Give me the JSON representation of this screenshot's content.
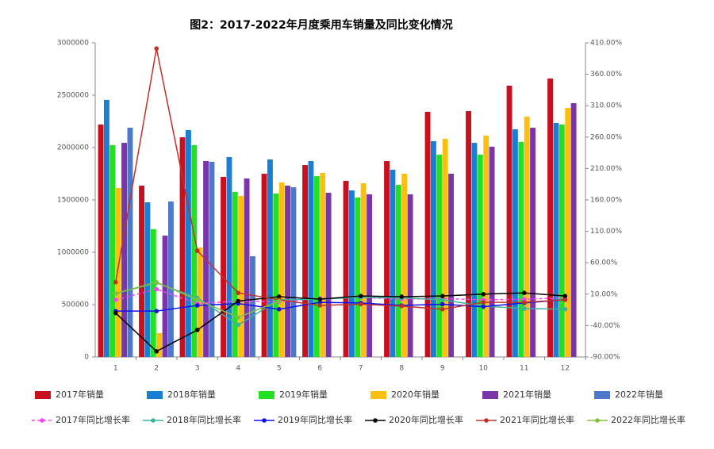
{
  "chart_data": {
    "type": "bar",
    "title": "图2：2017-2022年月度乘用车销量及同比变化情况",
    "categories": [
      "1",
      "2",
      "3",
      "4",
      "5",
      "6",
      "7",
      "8",
      "9",
      "10",
      "11",
      "12"
    ],
    "ylim": [
      0,
      3000000
    ],
    "yticks": [
      0,
      500000,
      1000000,
      1500000,
      2000000,
      2500000,
      3000000
    ],
    "y2lim": [
      -90,
      410
    ],
    "y2ticks": [
      {
        "value": -90,
        "label": "-90.00%"
      },
      {
        "value": -40,
        "label": "-40.00%"
      },
      {
        "value": 10,
        "label": "10.00%"
      },
      {
        "value": 60,
        "label": "60.00%"
      },
      {
        "value": 110,
        "label": "110.00%"
      },
      {
        "value": 160,
        "label": "160.00%"
      },
      {
        "value": 210,
        "label": "210.00%"
      },
      {
        "value": 260,
        "label": "260.00%"
      },
      {
        "value": 310,
        "label": "310.00%"
      },
      {
        "value": 360,
        "label": "360.00%"
      },
      {
        "value": 410,
        "label": "410.00%"
      }
    ],
    "series": [
      {
        "name": "2017年销量",
        "type": "bar",
        "color": "#c8101e",
        "values": [
          2220000,
          1636000,
          2098000,
          1720000,
          1750000,
          1833000,
          1682000,
          1871000,
          2341000,
          2348000,
          2591000,
          2659000
        ]
      },
      {
        "name": "2018年销量",
        "type": "bar",
        "color": "#1a7fd4",
        "values": [
          2455000,
          1477000,
          2167000,
          1909000,
          1886000,
          1871000,
          1591000,
          1788000,
          2061000,
          2045000,
          2174000,
          2235000
        ]
      },
      {
        "name": "2019年销量",
        "type": "bar",
        "color": "#22e022",
        "values": [
          2023000,
          1220000,
          2023000,
          1576000,
          1561000,
          1727000,
          1523000,
          1644000,
          1932000,
          1932000,
          2053000,
          2220000
        ]
      },
      {
        "name": "2020年销量",
        "type": "bar",
        "color": "#fcbf10",
        "values": [
          1614000,
          227000,
          1045000,
          1538000,
          1667000,
          1758000,
          1659000,
          1750000,
          2083000,
          2114000,
          2295000,
          2379000
        ]
      },
      {
        "name": "2021年销量",
        "type": "bar",
        "color": "#7a35a8",
        "values": [
          2045000,
          1159000,
          1871000,
          1705000,
          1636000,
          1568000,
          1553000,
          1553000,
          1750000,
          2008000,
          2189000,
          2424000
        ]
      },
      {
        "name": "2022年销量",
        "type": "bar",
        "color": "#4d78cc",
        "values": [
          2189000,
          1485000,
          1864000,
          962000,
          1621000,
          null,
          null,
          null,
          null,
          null,
          null,
          null
        ]
      },
      {
        "name": "2017年同比增长率",
        "type": "line",
        "axis": "y2",
        "color": "#ff40ff",
        "dashed": true,
        "values": [
          1,
          18,
          -5,
          -1,
          -2,
          3,
          5,
          2,
          3,
          1,
          2,
          4
        ]
      },
      {
        "name": "2018年同比增长率",
        "type": "line",
        "axis": "y2",
        "color": "#3cb39b",
        "values": [
          11,
          28,
          4,
          -39,
          1,
          2,
          5,
          4,
          1,
          -9,
          -13,
          -14
        ]
      },
      {
        "name": "2019年同比增长率",
        "type": "line",
        "axis": "y2",
        "color": "#1010f0",
        "values": [
          -17,
          -17,
          -8,
          -5,
          -14,
          -3,
          -4,
          -8,
          -6,
          -10,
          -4,
          1
        ]
      },
      {
        "name": "2020年同比增长率",
        "type": "line",
        "axis": "y2",
        "color": "#000000",
        "values": [
          -20,
          -81,
          -47,
          -1,
          6,
          2,
          7,
          6,
          7,
          10,
          12,
          7
        ]
      },
      {
        "name": "2021年同比增长率",
        "type": "line",
        "axis": "y2",
        "color": "#c0302b",
        "values": [
          29,
          401,
          79,
          12,
          1,
          -8,
          -6,
          -9,
          -14,
          -3,
          -3,
          1
        ]
      },
      {
        "name": "2022年同比增长率",
        "type": "line",
        "axis": "y2",
        "color": "#80c040",
        "values": [
          11,
          29,
          1,
          -27,
          -1,
          null,
          null,
          null,
          null,
          null,
          null,
          null
        ]
      }
    ]
  }
}
